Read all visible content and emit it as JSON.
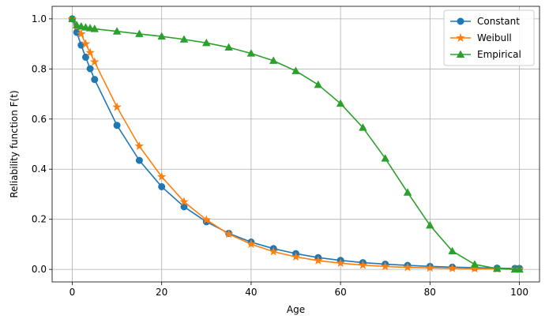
{
  "chart_data": {
    "type": "line",
    "xlabel": "Age",
    "ylabel": "Reliability function F(t)",
    "xlim": [
      -4.5,
      104.5
    ],
    "ylim": [
      -0.05,
      1.05
    ],
    "xticks": [
      0,
      20,
      40,
      60,
      80,
      100
    ],
    "yticks": [
      0.0,
      0.2,
      0.4,
      0.6,
      0.8,
      1.0
    ],
    "xtick_labels": [
      "0",
      "20",
      "40",
      "60",
      "80",
      "100"
    ],
    "ytick_labels": [
      "0.0",
      "0.2",
      "0.4",
      "0.6",
      "0.8",
      "1.0"
    ],
    "grid": true,
    "legend_position": "top-right",
    "series": [
      {
        "name": "Constant",
        "color": "#1f77b4",
        "marker": "circle",
        "x": [
          0,
          1,
          2,
          3,
          4,
          5,
          10,
          15,
          20,
          25,
          30,
          35,
          40,
          45,
          50,
          55,
          60,
          65,
          70,
          75,
          80,
          85,
          90,
          95,
          99,
          100
        ],
        "y": [
          1.0,
          0.946,
          0.895,
          0.847,
          0.801,
          0.758,
          0.575,
          0.435,
          0.33,
          0.25,
          0.19,
          0.144,
          0.109,
          0.083,
          0.063,
          0.047,
          0.036,
          0.027,
          0.021,
          0.016,
          0.012,
          0.009,
          0.007,
          0.005,
          0.004,
          0.004
        ]
      },
      {
        "name": "Weibull",
        "color": "#ff7f0e",
        "marker": "star",
        "x": [
          0,
          1,
          2,
          3,
          4,
          5,
          10,
          15,
          20,
          25,
          30,
          35,
          40,
          45,
          50,
          55,
          60,
          65,
          70,
          75,
          80,
          85,
          90,
          95,
          99,
          100
        ],
        "y": [
          1.0,
          0.97,
          0.94,
          0.9,
          0.865,
          0.828,
          0.648,
          0.492,
          0.37,
          0.27,
          0.198,
          0.141,
          0.101,
          0.071,
          0.05,
          0.035,
          0.025,
          0.017,
          0.012,
          0.008,
          0.006,
          0.004,
          0.003,
          0.002,
          0.001,
          0.001
        ]
      },
      {
        "name": "Empirical",
        "color": "#2ca02c",
        "marker": "triangle",
        "x": [
          0,
          1,
          2,
          3,
          4,
          5,
          10,
          15,
          20,
          25,
          30,
          35,
          40,
          45,
          50,
          55,
          60,
          65,
          70,
          75,
          80,
          85,
          90,
          95,
          99,
          100
        ],
        "y": [
          1.0,
          0.975,
          0.97,
          0.966,
          0.963,
          0.96,
          0.95,
          0.94,
          0.93,
          0.918,
          0.904,
          0.886,
          0.862,
          0.833,
          0.792,
          0.737,
          0.662,
          0.566,
          0.443,
          0.307,
          0.176,
          0.073,
          0.02,
          0.003,
          0.0,
          0.0
        ]
      }
    ]
  }
}
